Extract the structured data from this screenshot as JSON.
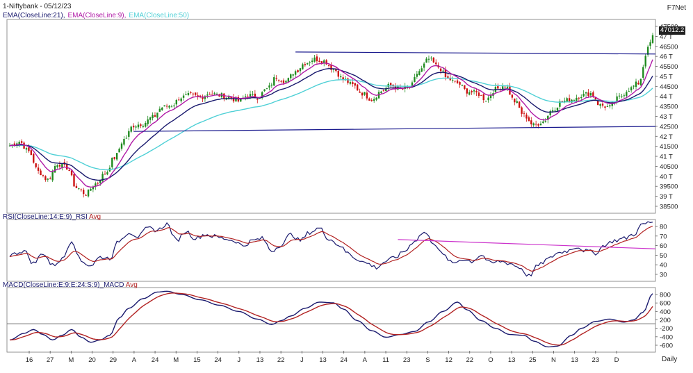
{
  "header": {
    "title": "1-Niftybank - 05/12/23",
    "brand": "F7Net",
    "ema_labels": [
      "EMA(CloseLine:21),",
      "EMA(CloseLine:9),",
      "EMA(CloseLine:50)"
    ],
    "rsi_label": "RSI(CloseLine:14:E:9)_RSI",
    "rsi_avg": "Avg",
    "macd_label": "MACD(CloseLine:E:9:E:24:S:9)_MACD",
    "macd_avg": "Avg",
    "timeframe": "Daily"
  },
  "colors": {
    "up": "#1f8a1f",
    "down": "#cc1111",
    "ema21": "#1a1a6e",
    "ema9": "#b01aa6",
    "ema50": "#4fd0d6",
    "trendline": "#1a1a8e",
    "rsi": "#1a1a6e",
    "rsi_avg": "#b22222",
    "rsi_trendline": "#cc33cc",
    "macd": "#1a1a6e",
    "macd_avg": "#b22222"
  },
  "chart_data": [
    {
      "type": "candlestick",
      "title": "1-Niftybank - 05/12/23",
      "x_tick_labels": [
        "16",
        "27",
        "M",
        "20",
        "29",
        "A",
        "24",
        "M",
        "15",
        "24",
        "J",
        "13",
        "22",
        "J",
        "13",
        "24",
        "A",
        "11",
        "23",
        "S",
        "12",
        "22",
        "O",
        "13",
        "25",
        "N",
        "13",
        "23",
        "D"
      ],
      "y_tick_labels": [
        "47500",
        "47 T",
        "46500",
        "46 T",
        "45500",
        "45 T",
        "44500",
        "44 T",
        "43500",
        "43 T",
        "42500",
        "42 T",
        "41500",
        "41 T",
        "40500",
        "40 T",
        "39500",
        "39 T",
        "38500"
      ],
      "ylim": [
        38300,
        47800
      ],
      "last_price": "47012.2",
      "series": [
        "EMA(CloseLine:21)",
        "EMA(CloseLine:9)",
        "EMA(CloseLine:50)"
      ],
      "anchors": [
        [
          0,
          41600
        ],
        [
          4,
          41800
        ],
        [
          8,
          41300
        ],
        [
          12,
          40300
        ],
        [
          16,
          39900
        ],
        [
          20,
          40700
        ],
        [
          24,
          40500
        ],
        [
          28,
          39500
        ],
        [
          32,
          39200
        ],
        [
          36,
          39700
        ],
        [
          40,
          40200
        ],
        [
          44,
          41000
        ],
        [
          48,
          41900
        ],
        [
          52,
          42600
        ],
        [
          56,
          42700
        ],
        [
          60,
          43000
        ],
        [
          64,
          43500
        ],
        [
          68,
          43600
        ],
        [
          72,
          44000
        ],
        [
          76,
          44100
        ],
        [
          80,
          44000
        ],
        [
          84,
          44200
        ],
        [
          88,
          44100
        ],
        [
          92,
          44000
        ],
        [
          96,
          43800
        ],
        [
          100,
          44100
        ],
        [
          104,
          44000
        ],
        [
          108,
          44400
        ],
        [
          112,
          45000
        ],
        [
          116,
          44800
        ],
        [
          120,
          45300
        ],
        [
          124,
          45700
        ],
        [
          128,
          45900
        ],
        [
          132,
          45800
        ],
        [
          136,
          45400
        ],
        [
          140,
          44900
        ],
        [
          144,
          44600
        ],
        [
          148,
          44200
        ],
        [
          152,
          43900
        ],
        [
          156,
          44300
        ],
        [
          160,
          44600
        ],
        [
          164,
          44400
        ],
        [
          168,
          44500
        ],
        [
          172,
          45300
        ],
        [
          176,
          45900
        ],
        [
          180,
          45500
        ],
        [
          184,
          44900
        ],
        [
          188,
          44700
        ],
        [
          192,
          44300
        ],
        [
          196,
          44200
        ],
        [
          200,
          43900
        ],
        [
          204,
          44400
        ],
        [
          208,
          44600
        ],
        [
          212,
          43800
        ],
        [
          216,
          43100
        ],
        [
          220,
          42600
        ],
        [
          224,
          42800
        ],
        [
          228,
          43400
        ],
        [
          232,
          43800
        ],
        [
          236,
          43900
        ],
        [
          240,
          44100
        ],
        [
          244,
          44200
        ],
        [
          248,
          43600
        ],
        [
          252,
          43500
        ],
        [
          256,
          44000
        ],
        [
          260,
          44400
        ],
        [
          264,
          44700
        ],
        [
          268,
          46400
        ],
        [
          270,
          47012
        ]
      ]
    },
    {
      "type": "line",
      "title": "RSI(CloseLine:14:E:9)_RSI Avg",
      "y_tick_labels": [
        "80",
        "70",
        "60",
        "50",
        "40",
        "30"
      ],
      "ylim": [
        24,
        81
      ],
      "series": [
        "RSI",
        "Avg"
      ],
      "anchors": [
        [
          0,
          48
        ],
        [
          6,
          52
        ],
        [
          10,
          40
        ],
        [
          14,
          50
        ],
        [
          18,
          38
        ],
        [
          22,
          44
        ],
        [
          26,
          62
        ],
        [
          30,
          42
        ],
        [
          34,
          38
        ],
        [
          38,
          46
        ],
        [
          42,
          45
        ],
        [
          46,
          62
        ],
        [
          50,
          70
        ],
        [
          54,
          66
        ],
        [
          58,
          74
        ],
        [
          62,
          72
        ],
        [
          66,
          78
        ],
        [
          70,
          62
        ],
        [
          74,
          71
        ],
        [
          78,
          64
        ],
        [
          82,
          68
        ],
        [
          86,
          66
        ],
        [
          90,
          64
        ],
        [
          94,
          62
        ],
        [
          98,
          57
        ],
        [
          102,
          62
        ],
        [
          106,
          64
        ],
        [
          110,
          52
        ],
        [
          114,
          58
        ],
        [
          118,
          68
        ],
        [
          122,
          62
        ],
        [
          126,
          70
        ],
        [
          130,
          74
        ],
        [
          134,
          64
        ],
        [
          138,
          58
        ],
        [
          142,
          50
        ],
        [
          146,
          44
        ],
        [
          150,
          40
        ],
        [
          154,
          36
        ],
        [
          158,
          42
        ],
        [
          162,
          46
        ],
        [
          166,
          52
        ],
        [
          170,
          62
        ],
        [
          174,
          70
        ],
        [
          178,
          60
        ],
        [
          182,
          48
        ],
        [
          186,
          40
        ],
        [
          190,
          44
        ],
        [
          194,
          42
        ],
        [
          198,
          48
        ],
        [
          202,
          40
        ],
        [
          206,
          42
        ],
        [
          210,
          40
        ],
        [
          214,
          36
        ],
        [
          218,
          28
        ],
        [
          222,
          38
        ],
        [
          226,
          44
        ],
        [
          230,
          50
        ],
        [
          234,
          52
        ],
        [
          238,
          56
        ],
        [
          242,
          52
        ],
        [
          246,
          50
        ],
        [
          250,
          58
        ],
        [
          254,
          62
        ],
        [
          258,
          64
        ],
        [
          262,
          68
        ],
        [
          266,
          78
        ],
        [
          270,
          80
        ]
      ],
      "trendline": [
        [
          163,
          63
        ],
        [
          300,
          54
        ]
      ]
    },
    {
      "type": "line",
      "title": "MACD(CloseLine:E:9:E:24:S:9)_MACD Avg",
      "y_tick_labels": [
        "800",
        "600",
        "400",
        "200",
        "-200",
        "-400",
        "-600"
      ],
      "ylim": [
        -700,
        900
      ],
      "zero_line": 0,
      "series": [
        "MACD",
        "Avg"
      ],
      "anchors": [
        [
          0,
          -420
        ],
        [
          6,
          -250
        ],
        [
          10,
          -150
        ],
        [
          14,
          -280
        ],
        [
          18,
          -420
        ],
        [
          22,
          -300
        ],
        [
          26,
          -150
        ],
        [
          30,
          -350
        ],
        [
          34,
          -480
        ],
        [
          38,
          -420
        ],
        [
          42,
          -300
        ],
        [
          46,
          150
        ],
        [
          50,
          400
        ],
        [
          56,
          650
        ],
        [
          62,
          820
        ],
        [
          66,
          840
        ],
        [
          72,
          760
        ],
        [
          80,
          620
        ],
        [
          88,
          480
        ],
        [
          96,
          320
        ],
        [
          104,
          120
        ],
        [
          110,
          -20
        ],
        [
          114,
          80
        ],
        [
          118,
          200
        ],
        [
          124,
          400
        ],
        [
          130,
          560
        ],
        [
          136,
          540
        ],
        [
          140,
          380
        ],
        [
          146,
          80
        ],
        [
          152,
          -180
        ],
        [
          158,
          -350
        ],
        [
          164,
          -280
        ],
        [
          170,
          -200
        ],
        [
          176,
          50
        ],
        [
          182,
          320
        ],
        [
          188,
          560
        ],
        [
          192,
          360
        ],
        [
          198,
          80
        ],
        [
          204,
          -120
        ],
        [
          210,
          -280
        ],
        [
          216,
          -300
        ],
        [
          220,
          -450
        ],
        [
          226,
          -600
        ],
        [
          230,
          -580
        ],
        [
          236,
          -300
        ],
        [
          240,
          -120
        ],
        [
          246,
          60
        ],
        [
          252,
          120
        ],
        [
          258,
          40
        ],
        [
          262,
          100
        ],
        [
          266,
          300
        ],
        [
          270,
          780
        ]
      ]
    }
  ]
}
